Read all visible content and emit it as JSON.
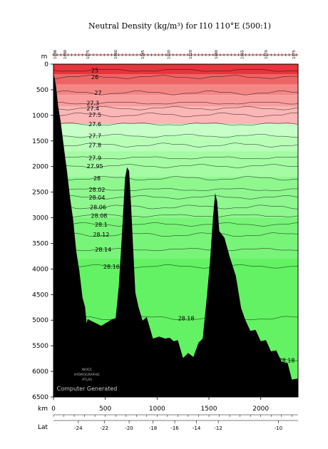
{
  "chart_data": {
    "type": "area",
    "title": "Neutral Density (kg/m³) for I10 110°E (500:1)",
    "y_unit": "m",
    "x_unit": "km",
    "lat_label": "Lat",
    "watermark_logo": [
      "WOCE",
      "HYDROGRAPHIC",
      "ATLAS"
    ],
    "watermark_text": "Computer Generated",
    "xlim": [
      0,
      2360
    ],
    "ylim": [
      0,
      6500
    ],
    "y_ticks": [
      0,
      500,
      1000,
      1500,
      2000,
      2500,
      3000,
      3500,
      4000,
      4500,
      5000,
      5500,
      6000,
      6500
    ],
    "x_ticks": [
      0,
      500,
      1000,
      1500,
      2000
    ],
    "lat_ticks": [
      {
        "km": 240,
        "label": "-24"
      },
      {
        "km": 490,
        "label": "-22"
      },
      {
        "km": 730,
        "label": "-20"
      },
      {
        "km": 960,
        "label": "-18"
      },
      {
        "km": 1170,
        "label": "-16"
      },
      {
        "km": 1380,
        "label": "-14"
      },
      {
        "km": 1590,
        "label": "-12"
      },
      {
        "km": 2170,
        "label": "-10"
      }
    ],
    "station_labels": [
      {
        "km": 15,
        "label": "1098"
      },
      {
        "km": 110,
        "label": "1090"
      },
      {
        "km": 330,
        "label": "1075"
      },
      {
        "km": 600,
        "label": "1060"
      },
      {
        "km": 860,
        "label": "1045"
      },
      {
        "km": 1110,
        "label": "1030"
      },
      {
        "km": 1320,
        "label": "1020"
      },
      {
        "km": 1570,
        "label": "1080"
      },
      {
        "km": 1820,
        "label": "1065"
      },
      {
        "km": 2050,
        "label": "1070"
      },
      {
        "km": 2320,
        "label": "1075"
      }
    ],
    "colors": {
      "high": "#e8343c",
      "mid": "#ffb8b8",
      "low": "#a8ffa8",
      "deep": "#63f263",
      "bottom": "#000000"
    },
    "layers": [
      {
        "top": 0,
        "bottom": 200,
        "color": "#e8343c"
      },
      {
        "top": 200,
        "bottom": 400,
        "color": "#ee6464"
      },
      {
        "top": 400,
        "bottom": 600,
        "color": "#f48686"
      },
      {
        "top": 600,
        "bottom": 830,
        "color": "#f89e9e"
      },
      {
        "top": 830,
        "bottom": 1170,
        "color": "#fcb6b6"
      },
      {
        "top": 1170,
        "bottom": 1400,
        "color": "#c8ffc8"
      },
      {
        "top": 1400,
        "bottom": 1700,
        "color": "#b8ffb8"
      },
      {
        "top": 1700,
        "bottom": 2200,
        "color": "#a4fba4"
      },
      {
        "top": 2200,
        "bottom": 3000,
        "color": "#8ef78e"
      },
      {
        "top": 3000,
        "bottom": 3800,
        "color": "#78f478"
      },
      {
        "top": 3800,
        "bottom": 6500,
        "color": "#63f263"
      }
    ],
    "isopycnals": [
      {
        "label": "25",
        "depth": 120,
        "label_km": 400
      },
      {
        "label": "26",
        "depth": 250,
        "label_km": 400
      },
      {
        "label": "27",
        "depth": 560,
        "label_km": 430
      },
      {
        "label": "27.3",
        "depth": 760,
        "label_km": 380
      },
      {
        "label": "27.4",
        "depth": 860,
        "label_km": 380
      },
      {
        "label": "27.5",
        "depth": 990,
        "label_km": 400
      },
      {
        "label": "27.6",
        "depth": 1170,
        "label_km": 400
      },
      {
        "label": "27.7",
        "depth": 1400,
        "label_km": 400
      },
      {
        "label": "27.8",
        "depth": 1580,
        "label_km": 400
      },
      {
        "label": "27.9",
        "depth": 1830,
        "label_km": 400
      },
      {
        "label": "27.95",
        "depth": 1990,
        "label_km": 400
      },
      {
        "label": "28",
        "depth": 2230,
        "label_km": 420
      },
      {
        "label": "28.02",
        "depth": 2450,
        "label_km": 420
      },
      {
        "label": "28.04",
        "depth": 2600,
        "label_km": 420
      },
      {
        "label": "28.06",
        "depth": 2790,
        "label_km": 430
      },
      {
        "label": "28.08",
        "depth": 2960,
        "label_km": 440
      },
      {
        "label": "28.1",
        "depth": 3130,
        "label_km": 460
      },
      {
        "label": "28.12",
        "depth": 3330,
        "label_km": 460
      },
      {
        "label": "28.14",
        "depth": 3620,
        "label_km": 480
      },
      {
        "label": "28.16",
        "depth": 3950,
        "label_km": 560
      },
      {
        "label": "28.18",
        "depth": 4960,
        "label_km": 1280
      },
      {
        "label": "28.18",
        "depth": 5780,
        "label_km": 2250
      }
    ],
    "bathymetry": [
      [
        0,
        230
      ],
      [
        10,
        250
      ],
      [
        25,
        450
      ],
      [
        45,
        800
      ],
      [
        70,
        1150
      ],
      [
        100,
        1600
      ],
      [
        130,
        2100
      ],
      [
        160,
        2600
      ],
      [
        190,
        3100
      ],
      [
        220,
        3600
      ],
      [
        250,
        4100
      ],
      [
        280,
        4500
      ],
      [
        305,
        4800
      ],
      [
        320,
        5000
      ],
      [
        330,
        5040
      ],
      [
        460,
        5050
      ],
      [
        560,
        5050
      ],
      [
        600,
        4900
      ],
      [
        630,
        4400
      ],
      [
        660,
        3300
      ],
      [
        690,
        2250
      ],
      [
        710,
        2000
      ],
      [
        730,
        2100
      ],
      [
        750,
        2800
      ],
      [
        770,
        3700
      ],
      [
        790,
        4400
      ],
      [
        820,
        4800
      ],
      [
        860,
        4950
      ],
      [
        900,
        5000
      ],
      [
        960,
        5300
      ],
      [
        1020,
        5380
      ],
      [
        1080,
        5300
      ],
      [
        1120,
        5400
      ],
      [
        1160,
        5350
      ],
      [
        1200,
        5450
      ],
      [
        1250,
        5680
      ],
      [
        1300,
        5700
      ],
      [
        1350,
        5660
      ],
      [
        1400,
        5500
      ],
      [
        1440,
        5300
      ],
      [
        1480,
        4600
      ],
      [
        1510,
        3800
      ],
      [
        1540,
        3000
      ],
      [
        1560,
        2500
      ],
      [
        1580,
        2700
      ],
      [
        1600,
        3200
      ],
      [
        1650,
        3450
      ],
      [
        1700,
        3700
      ],
      [
        1760,
        4200
      ],
      [
        1810,
        4700
      ],
      [
        1850,
        5050
      ],
      [
        1900,
        5150
      ],
      [
        1950,
        5250
      ],
      [
        2000,
        5350
      ],
      [
        2050,
        5450
      ],
      [
        2100,
        5550
      ],
      [
        2150,
        5650
      ],
      [
        2200,
        5750
      ],
      [
        2260,
        5900
      ],
      [
        2300,
        6100
      ],
      [
        2360,
        6200
      ]
    ]
  }
}
